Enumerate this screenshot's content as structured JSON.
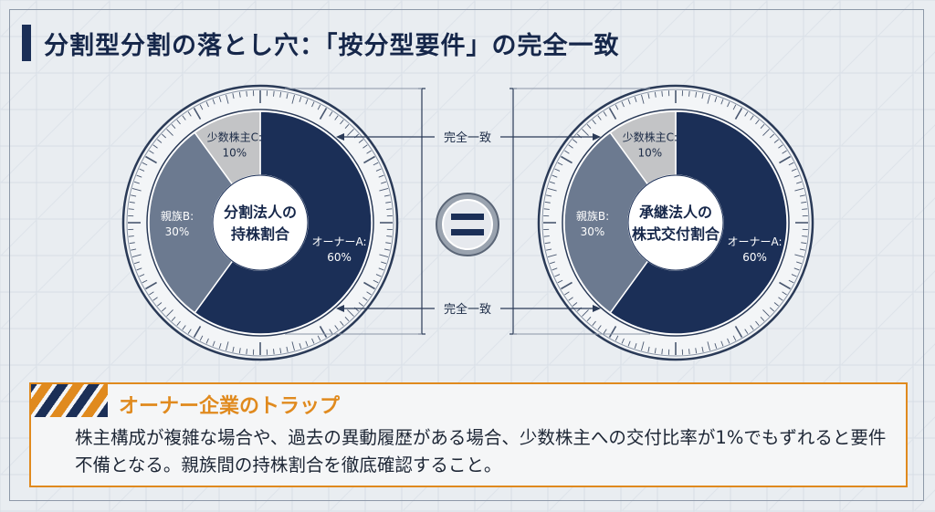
{
  "title": "分割型分割の落とし穴：「按分型要件」の完全一致",
  "chart_data": [
    {
      "type": "pie",
      "title": "分割法人の持株割合",
      "center_lines": [
        "分割法人の",
        "持株割合"
      ],
      "slices": [
        {
          "label": "オーナーA:",
          "display": "60%",
          "value": 60,
          "color": "#1b2f57"
        },
        {
          "label": "親族B:",
          "display": "30%",
          "value": 30,
          "color": "#6c7a90"
        },
        {
          "label": "少数株主C:",
          "display": "10%",
          "value": 10,
          "color": "#c3c4c6"
        }
      ]
    },
    {
      "type": "pie",
      "title": "承継法人の株式交付割合",
      "center_lines": [
        "承継法人の",
        "株式交付割合"
      ],
      "slices": [
        {
          "label": "オーナーA:",
          "display": "60%",
          "value": 60,
          "color": "#1b2f57"
        },
        {
          "label": "親族B:",
          "display": "30%",
          "value": 30,
          "color": "#6c7a90"
        },
        {
          "label": "少数株主C:",
          "display": "10%",
          "value": 10,
          "color": "#c3c4c6"
        }
      ]
    }
  ],
  "match_label_top": "完全一致",
  "match_label_bottom": "完全一致",
  "equals_symbol": "=",
  "trap": {
    "title": "オーナー企業のトラップ",
    "body": "株主構成が複雑な場合や、過去の異動履歴がある場合、少数株主への交付比率が1%でもずれると要件不備となる。親族間の持株割合を徹底確認すること。"
  },
  "colors": {
    "navy": "#1b2f57",
    "slate": "#6c7a90",
    "grey": "#c3c4c6",
    "accent": "#e08a1e"
  }
}
